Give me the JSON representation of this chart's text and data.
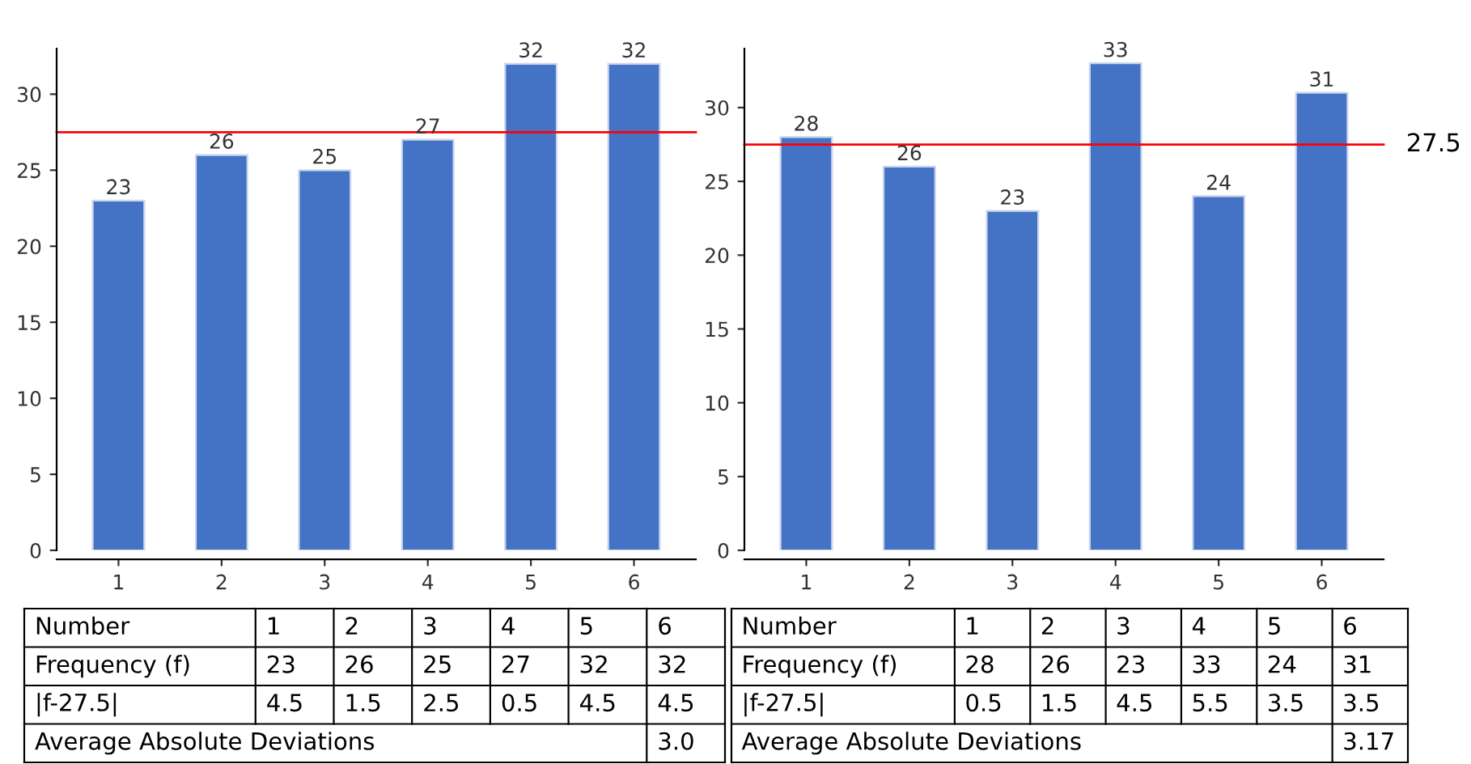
{
  "chart_data": [
    {
      "type": "bar",
      "categories": [
        "1",
        "2",
        "3",
        "4",
        "5",
        "6"
      ],
      "values": [
        23,
        26,
        25,
        27,
        32,
        32
      ],
      "color": "#4472c4",
      "ylim": [
        0,
        33
      ],
      "yticks": [
        0,
        5,
        10,
        15,
        20,
        25,
        30
      ],
      "data_labels": true,
      "grid": false,
      "legend": false,
      "ref_lines": [
        {
          "axis": "y",
          "value": 27.5,
          "color": "#ff0000"
        }
      ],
      "annotations": [
        "Number",
        "Frequency (f)",
        "|f-27.5|",
        "4.5",
        "1.5",
        "2.5",
        "0.5",
        "4.5",
        "4.5",
        "Average Absolute Deviations",
        "3.0",
        "23",
        "26",
        "25",
        "27",
        "32",
        "32"
      ]
    },
    {
      "type": "bar",
      "categories": [
        "1",
        "2",
        "3",
        "4",
        "5",
        "6"
      ],
      "values": [
        28,
        26,
        23,
        33,
        24,
        31
      ],
      "color": "#4472c4",
      "ylim": [
        0,
        34
      ],
      "yticks": [
        0,
        5,
        10,
        15,
        20,
        25,
        30
      ],
      "data_labels": true,
      "grid": false,
      "legend": false,
      "ref_lines": [
        {
          "axis": "y",
          "value": 27.5,
          "color": "#ff0000",
          "label": "27.5"
        }
      ],
      "annotations": [
        "Number",
        "Frequency (f)",
        "|f-27.5|",
        "0.5",
        "1.5",
        "4.5",
        "5.5",
        "3.5",
        "3.5",
        "Average Absolute Deviations",
        "3.17",
        "28",
        "26",
        "23",
        "33",
        "24",
        "31"
      ]
    }
  ]
}
